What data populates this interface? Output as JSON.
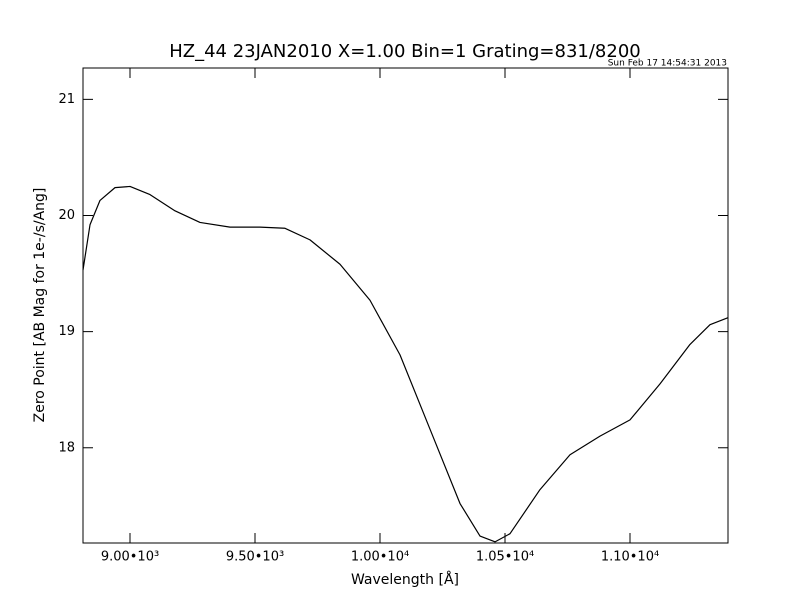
{
  "chart_data": {
    "type": "line",
    "title": "HZ_44 23JAN2010 X=1.00 Bin=1 Grating=831/8200",
    "timestamp": "Sun Feb 17 14:54:31 2013",
    "x_label": "Wavelength [Å]",
    "y_label": "Zero Point [AB Mag for 1e-/s/Ang]",
    "x": [
      8812,
      8840,
      8880,
      8940,
      9000,
      9080,
      9180,
      9280,
      9400,
      9520,
      9620,
      9720,
      9840,
      9960,
      10080,
      10200,
      10320,
      10400,
      10460,
      10520,
      10640,
      10760,
      10880,
      11000,
      11120,
      11240,
      11320,
      11392
    ],
    "series": [
      {
        "color": "#000000",
        "values": [
          19.53,
          19.92,
          20.13,
          20.24,
          20.25,
          20.18,
          20.04,
          19.94,
          19.9,
          19.9,
          19.89,
          19.79,
          19.58,
          19.27,
          18.8,
          18.16,
          17.52,
          17.24,
          17.19,
          17.26,
          17.64,
          17.94,
          18.1,
          18.24,
          18.55,
          18.89,
          19.06,
          19.12
        ]
      }
    ],
    "xlim": [
      8812,
      11392
    ],
    "ylim": [
      17.18,
      21.27
    ],
    "xticks": [
      {
        "value": 9000,
        "label": "9.00•10³"
      },
      {
        "value": 9500,
        "label": "9.50•10³"
      },
      {
        "value": 10000,
        "label": "1.00•10⁴"
      },
      {
        "value": 10500,
        "label": "1.05•10⁴"
      },
      {
        "value": 11000,
        "label": "1.10•10⁴"
      }
    ],
    "yticks": [
      18,
      19,
      20,
      21
    ]
  }
}
